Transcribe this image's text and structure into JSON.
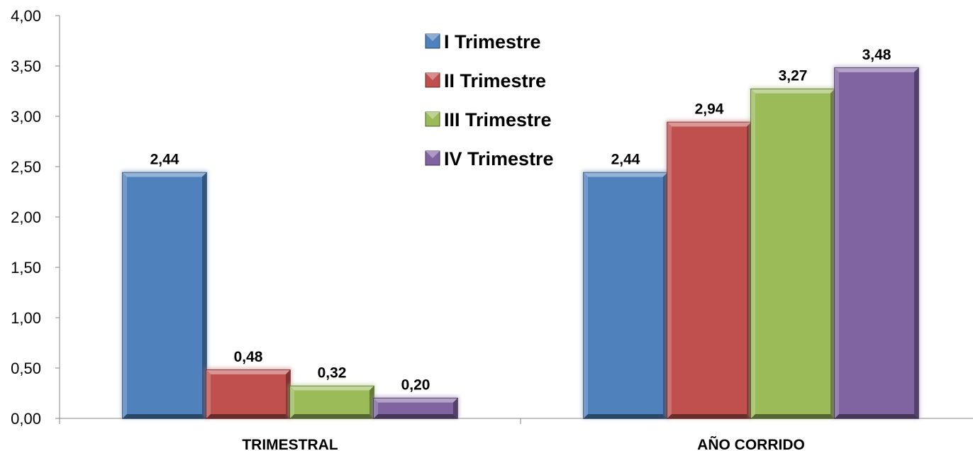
{
  "chart_data": {
    "type": "bar",
    "categories": [
      "TRIMESTRAL",
      "AÑO CORRIDO"
    ],
    "series": [
      {
        "name": "I Trimestre",
        "color": "#4F81BD",
        "values": [
          2.44,
          2.44
        ],
        "labels": [
          "2,44",
          "2,44"
        ]
      },
      {
        "name": "II Trimestre",
        "color": "#C0504D",
        "values": [
          0.48,
          2.94
        ],
        "labels": [
          "0,48",
          "2,94"
        ]
      },
      {
        "name": "III Trimestre",
        "color": "#9BBB59",
        "values": [
          0.32,
          3.27
        ],
        "labels": [
          "0,32",
          "3,27"
        ]
      },
      {
        "name": "IV Trimestre",
        "color": "#8064A2",
        "values": [
          0.2,
          3.48
        ],
        "labels": [
          "0,20",
          "3,48"
        ]
      }
    ],
    "ylim": [
      0,
      4
    ],
    "yticks": [
      0,
      0.5,
      1,
      1.5,
      2,
      2.5,
      3,
      3.5,
      4
    ],
    "ytick_labels": [
      "0,00",
      "0,50",
      "1,00",
      "1,50",
      "2,00",
      "2,50",
      "3,00",
      "3,50",
      "4,00"
    ],
    "legend_position": "top-center",
    "grid": false
  }
}
